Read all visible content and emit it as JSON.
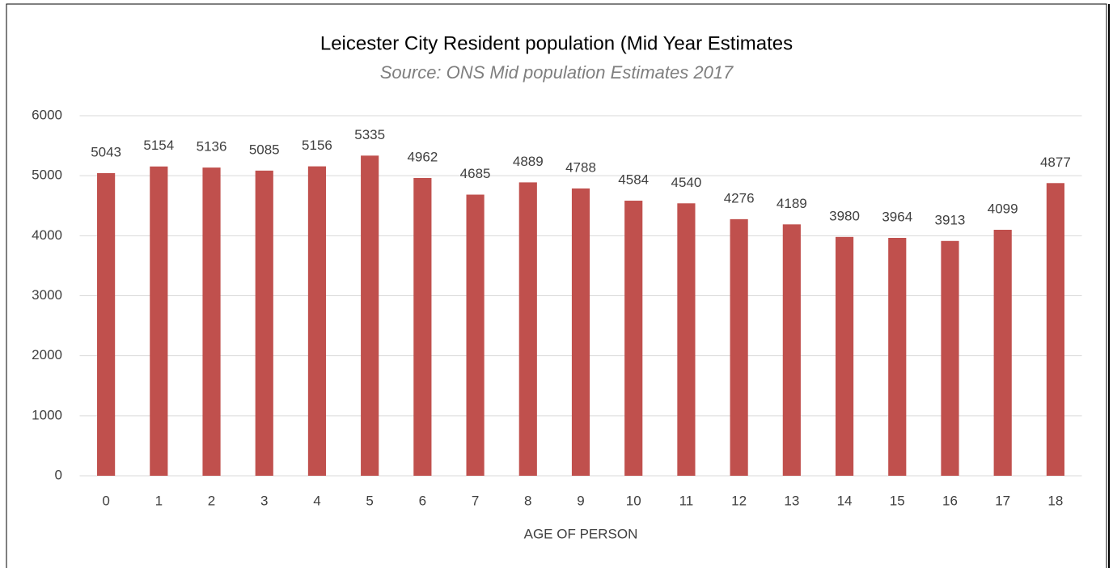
{
  "chart_data": {
    "type": "bar",
    "title": "Leicester City Resident population (Mid Year Estimates",
    "subtitle": "Source: ONS Mid population Estimates 2017",
    "x_label": "AGE OF PERSON",
    "categories": [
      "0",
      "1",
      "2",
      "3",
      "4",
      "5",
      "6",
      "7",
      "8",
      "9",
      "10",
      "11",
      "12",
      "13",
      "14",
      "15",
      "16",
      "17",
      "18"
    ],
    "values": [
      5043,
      5154,
      5136,
      5085,
      5156,
      5335,
      4962,
      4685,
      4889,
      4788,
      4584,
      4540,
      4276,
      4189,
      3980,
      3964,
      3913,
      4099,
      4877
    ],
    "color": "#c0504d",
    "ylim": [
      0,
      6000
    ],
    "yticks": [
      0,
      1000,
      2000,
      3000,
      4000,
      5000,
      6000
    ],
    "grid": true
  }
}
